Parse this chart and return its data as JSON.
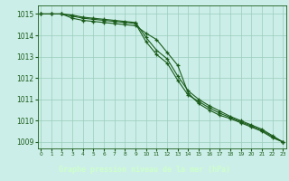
{
  "title": "Graphe pression niveau de la mer (hPa)",
  "hours": [
    0,
    1,
    2,
    3,
    4,
    5,
    6,
    7,
    8,
    9,
    10,
    11,
    12,
    13,
    14,
    15,
    16,
    17,
    18,
    19,
    20,
    21,
    22,
    23
  ],
  "line1": [
    1015.0,
    1015.0,
    1015.0,
    1014.8,
    1014.7,
    1014.65,
    1014.6,
    1014.55,
    1014.5,
    1014.45,
    1014.1,
    1013.8,
    1013.2,
    1012.6,
    1011.3,
    1010.8,
    1010.5,
    1010.25,
    1010.1,
    1009.9,
    1009.7,
    1009.5,
    1009.2,
    1009.0
  ],
  "line2": [
    1015.0,
    1015.0,
    1015.0,
    1014.9,
    1014.8,
    1014.75,
    1014.7,
    1014.65,
    1014.6,
    1014.55,
    1013.7,
    1013.1,
    1012.7,
    1011.9,
    1011.2,
    1010.9,
    1010.6,
    1010.35,
    1010.15,
    1009.95,
    1009.75,
    1009.55,
    1009.25,
    1009.0
  ],
  "line3": [
    1015.0,
    1015.0,
    1015.0,
    1014.95,
    1014.85,
    1014.8,
    1014.75,
    1014.7,
    1014.65,
    1014.6,
    1013.9,
    1013.3,
    1012.9,
    1012.1,
    1011.4,
    1011.0,
    1010.7,
    1010.45,
    1010.2,
    1010.0,
    1009.8,
    1009.6,
    1009.3,
    1009.0
  ],
  "ylim": [
    1008.7,
    1015.4
  ],
  "yticks": [
    1009,
    1010,
    1011,
    1012,
    1013,
    1014,
    1015
  ],
  "line_color": "#1a5c1a",
  "bg_color": "#cceee8",
  "grid_color": "#99ccbb",
  "title_color": "#ccffcc",
  "title_bg": "#1a6b1a"
}
